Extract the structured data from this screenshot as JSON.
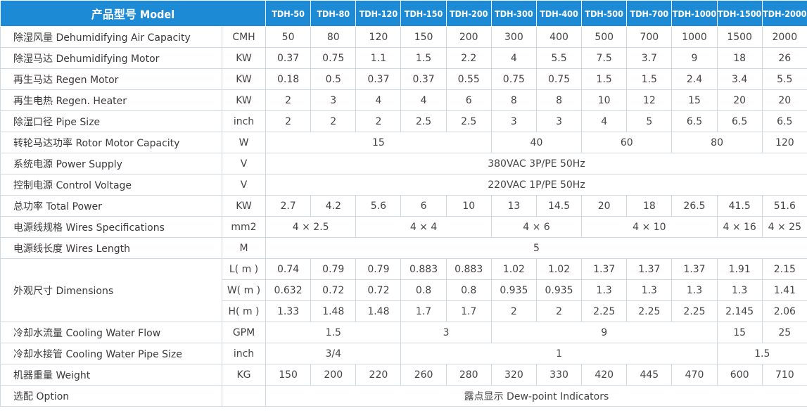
{
  "header": {
    "title": "产品型号 Model",
    "models": [
      "TDH-50",
      "TDH-80",
      "TDH-120",
      "TDH-150",
      "TDH-200",
      "TDH-300",
      "TDH-400",
      "TDH-500",
      "TDH-700",
      "TDH-1000",
      "TDH-1500",
      "TDH-2000"
    ]
  },
  "rows": [
    {
      "label": "除湿风量 Dehumidifying Air Capacity",
      "unit": "CMH",
      "values": [
        "50",
        "80",
        "120",
        "150",
        "200",
        "300",
        "400",
        "500",
        "700",
        "1000",
        "1500",
        "2000"
      ]
    },
    {
      "label": "除湿马达 Dehumidifying Motor",
      "unit": "KW",
      "values": [
        "0.37",
        "0.75",
        "1.1",
        "1.5",
        "2.2",
        "4",
        "5.5",
        "7.5",
        "3.7",
        "9",
        "18",
        "26"
      ]
    },
    {
      "label": "再生马达 Regen Motor",
      "unit": "KW",
      "values": [
        "0.18",
        "0.5",
        "0.37",
        "0.37",
        "0.55",
        "0.75",
        "0.75",
        "1.5",
        "1.5",
        "2.4",
        "3.4",
        "5.5"
      ]
    },
    {
      "label": "再生电热 Regen. Heater",
      "unit": "KW",
      "values": [
        "2",
        "3",
        "4",
        "4",
        "6",
        "8",
        "8",
        "10",
        "12",
        "15",
        "20",
        "20"
      ]
    },
    {
      "label": "除湿口径 Pipe Size",
      "unit": "inch",
      "values": [
        "2",
        "2",
        "2",
        "2.5",
        "2.5",
        "3",
        "3",
        "4",
        "5",
        "6.5",
        "6.5",
        "6.5"
      ]
    },
    {
      "label": "转轮马达功率 Rotor Motor Capacity",
      "unit": "W",
      "values": [
        "15",
        "40",
        "60",
        "80",
        "120"
      ]
    },
    {
      "label": "系统电源 Power Supply",
      "unit": "V",
      "values": [
        "380VAC 3P/PE 50Hz"
      ]
    },
    {
      "label": "控制电源 Control Voltage",
      "unit": "V",
      "values": [
        "220VAC 1P/PE 50Hz"
      ]
    },
    {
      "label": "总功率 Total Power",
      "unit": "KW",
      "values": [
        "2.7",
        "4.2",
        "5.6",
        "6",
        "10",
        "13",
        "14.5",
        "20",
        "18",
        "26.5",
        "41.5",
        "51.6"
      ]
    },
    {
      "label": "电源线规格 Wires Specifications",
      "unit": "mm2",
      "values": [
        "4 × 2.5",
        "4 × 4",
        "4 × 6",
        "4 × 10",
        "4 × 16",
        "4 × 25"
      ]
    },
    {
      "label": "电源线长度 Wires Length",
      "unit": "M",
      "values": [
        "5"
      ]
    },
    {
      "label": "外观尺寸 Dimensions",
      "dims": [
        {
          "unit": "L( m )",
          "values": [
            "0.74",
            "0.79",
            "0.79",
            "0.883",
            "0.883",
            "1.02",
            "1.02",
            "1.37",
            "1.37",
            "1.37",
            "1.91",
            "2.15"
          ]
        },
        {
          "unit": "W( m )",
          "values": [
            "0.632",
            "0.72",
            "0.72",
            "0.8",
            "0.8",
            "0.935",
            "0.935",
            "1.3",
            "1.3",
            "1.3",
            "1.3",
            "1.41"
          ]
        },
        {
          "unit": "H( m )",
          "values": [
            "1.33",
            "1.48",
            "1.48",
            "1.7",
            "1.7",
            "2",
            "2",
            "2.25",
            "2.25",
            "2.25",
            "2.145",
            "2.06"
          ]
        }
      ]
    },
    {
      "label": "冷却水流量 Cooling Water Flow",
      "unit": "GPM",
      "values": [
        "1.5",
        "3",
        "9",
        "15",
        "25"
      ]
    },
    {
      "label": "冷却水接管 Cooling Water Pipe Size",
      "unit": "inch",
      "values": [
        "3/4",
        "1",
        "1.5"
      ]
    },
    {
      "label": "机器重量 Weight",
      "unit": "KG",
      "values": [
        "150",
        "200",
        "220",
        "260",
        "280",
        "320",
        "330",
        "420",
        "445",
        "470",
        "600",
        "710"
      ]
    },
    {
      "label": "选配 Option",
      "values": [
        "露点显示 Dew-point Indicators"
      ]
    }
  ]
}
